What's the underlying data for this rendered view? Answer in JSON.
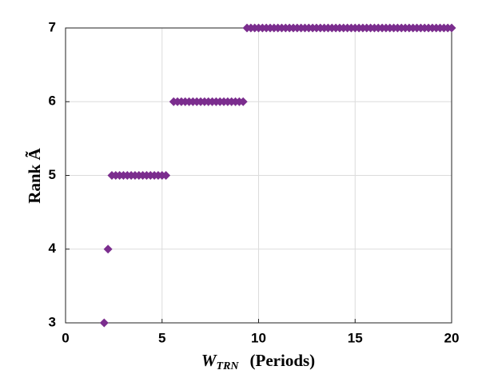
{
  "chart_data": {
    "type": "scatter",
    "ylabel": "Rank Ã",
    "xlabel": {
      "main": "W",
      "sub": "TRN",
      "rest": "(Periods)"
    },
    "xlim": [
      0,
      20
    ],
    "xticks": [
      0,
      5,
      10,
      15,
      20
    ],
    "ylim": [
      3,
      7
    ],
    "yticks": [
      3,
      4,
      5,
      6,
      7
    ],
    "grid": true,
    "series": [
      {
        "color": "#7b2d8e",
        "x": [
          2
        ],
        "values": [
          3
        ]
      },
      {
        "color": "#7b2d8e",
        "x": [
          2.2
        ],
        "values": [
          4
        ]
      },
      {
        "color": "#7b2d8e",
        "x": [
          2.4,
          2.6,
          2.8,
          3,
          3.2,
          3.4,
          3.6,
          3.8,
          4,
          4.2,
          4.4,
          4.6,
          4.8,
          5,
          5.2
        ],
        "values": [
          5,
          5,
          5,
          5,
          5,
          5,
          5,
          5,
          5,
          5,
          5,
          5,
          5,
          5,
          5
        ]
      },
      {
        "color": "#7b2d8e",
        "x": [
          5.6,
          5.8,
          6,
          6.2,
          6.4,
          6.6,
          6.8,
          7,
          7.2,
          7.4,
          7.6,
          7.8,
          8,
          8.2,
          8.4,
          8.6,
          8.8,
          9,
          9.2
        ],
        "values": [
          6,
          6,
          6,
          6,
          6,
          6,
          6,
          6,
          6,
          6,
          6,
          6,
          6,
          6,
          6,
          6,
          6,
          6,
          6
        ]
      },
      {
        "color": "#7b2d8e",
        "x": [
          9.4,
          9.6,
          9.8,
          10,
          10.2,
          10.4,
          10.6,
          10.8,
          11,
          11.2,
          11.4,
          11.6,
          11.8,
          12,
          12.2,
          12.4,
          12.6,
          12.8,
          13,
          13.2,
          13.4,
          13.6,
          13.8,
          14,
          14.2,
          14.4,
          14.6,
          14.8,
          15,
          15.2,
          15.4,
          15.6,
          15.8,
          16,
          16.2,
          16.4,
          16.6,
          16.8,
          17,
          17.2,
          17.4,
          17.6,
          17.8,
          18,
          18.2,
          18.4,
          18.6,
          18.8,
          19,
          19.2,
          19.4,
          19.6,
          19.8,
          20
        ],
        "values": [
          7,
          7,
          7,
          7,
          7,
          7,
          7,
          7,
          7,
          7,
          7,
          7,
          7,
          7,
          7,
          7,
          7,
          7,
          7,
          7,
          7,
          7,
          7,
          7,
          7,
          7,
          7,
          7,
          7,
          7,
          7,
          7,
          7,
          7,
          7,
          7,
          7,
          7,
          7,
          7,
          7,
          7,
          7,
          7,
          7,
          7,
          7,
          7,
          7,
          7,
          7,
          7,
          7,
          7
        ]
      }
    ]
  }
}
